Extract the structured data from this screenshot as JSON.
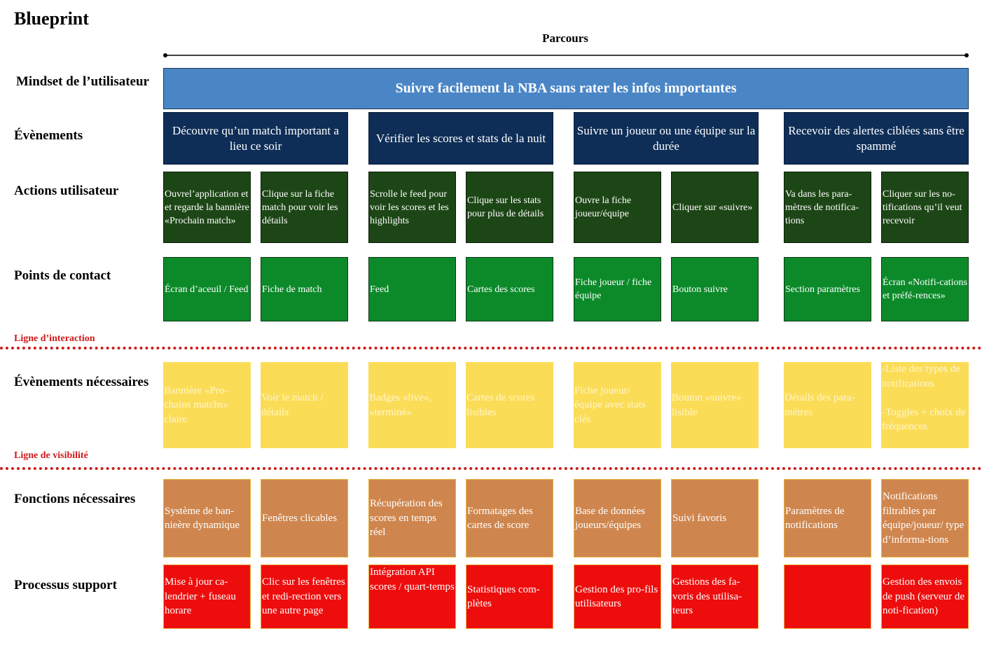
{
  "title": "Blueprint",
  "journey_label": "Parcours",
  "mindset": "Suivre facilement la NBA sans rater les infos importantes",
  "rows": {
    "mindset": "Mindset de l’utilisateur",
    "events": "Évènements",
    "actions": "Actions utilisateur",
    "contacts": "Points de contact",
    "needs": "Évènements nécessaires",
    "functions": "Fonctions nécessaires",
    "support": "Processus support"
  },
  "lines": {
    "interaction": "Ligne d’interaction",
    "visibility": "Ligne de visibilité"
  },
  "events": [
    "Découvre qu’un match important a lieu ce soir",
    "Vérifier les scores et stats de la nuit",
    "Suivre un joueur ou une équipe sur la durée",
    "Recevoir des alertes ciblées sans être spammé"
  ],
  "actions": [
    "Ouvrel’application et et regarde la bannière «Prochain match»",
    "Clique sur la fiche match pour voir les détails",
    "Scrolle le feed pour voir les scores et les highlights",
    "Clique sur les stats pour plus de détails",
    "Ouvre la fiche joueur/équipe",
    "Cliquer sur «suivre»",
    "Va dans les para-mètres de notifica-tions",
    "Cliquer sur les no-tifications qu’il veut recevoir"
  ],
  "contacts": [
    "Écran d’aceuil / Feed",
    "Fiche de match",
    "Feed",
    "Cartes des scores",
    "Fiche joueur / fiche équipe",
    "Bouton suivre",
    "Section paramètres",
    "Écran «Notifi-cations et préfé-rences»"
  ],
  "needs": [
    "Bannière «Pro-chains matchs» claire",
    "Voir le match / détails",
    "Badges «live», «terminé»",
    "Cartes de scores lisibles",
    "Fiche joueur/ équipe avec stats clés",
    "Bouton «suivre» lisible",
    "Détails des para-mètres",
    "-Liste des types de notifications\n\n-Toggles + choix de fréquences"
  ],
  "functions": [
    "Système de ban-nieère dynamique",
    "Fenêtres clicables",
    "Récupération des scores en temps réel",
    "Formatages des cartes de score",
    "Base de données joueurs/équipes",
    "Suivi favoris",
    "Paramètres de notifications",
    "Notifications filtrables par équipe/joueur/ type d’informa-tions"
  ],
  "support": [
    "Mise à jour ca-lendrier + fuseau horare",
    "Clic sur les fenêtres et redi-rection vers une autre page",
    "Intégration API scores / quart-temps",
    "Statistiques com-plètes",
    "Gestion des pro-fils utilisateurs",
    "Gestions des fa-voris des utilisa-teurs",
    "",
    "Gestion des envois de push (serveur de noti-fication)"
  ],
  "colors": {
    "mindset": "#4a86c6",
    "events": "#0e2e57",
    "actions": "#1d4616",
    "contacts": "#0c8a2a",
    "needs": "#fbdc57",
    "functions": "#cf864e",
    "support": "#ee0d0d",
    "lines": "#d01818"
  }
}
